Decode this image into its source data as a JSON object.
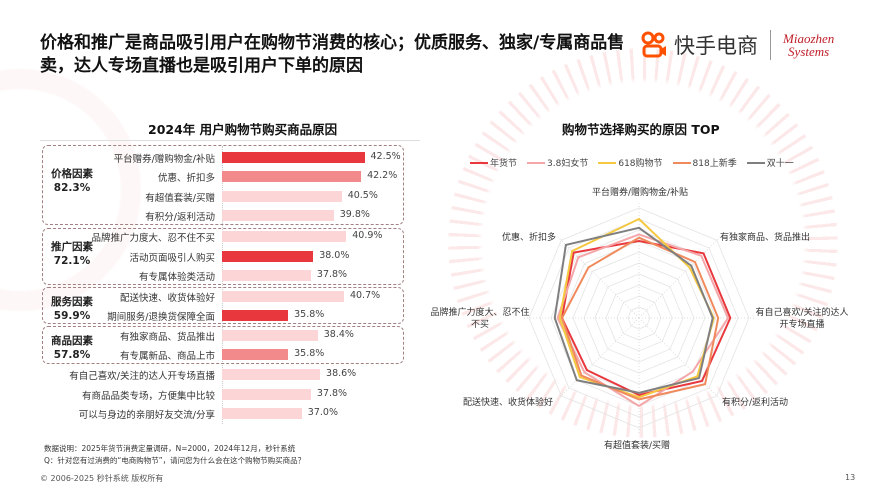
{
  "title": "价格和推广是商品吸引用户在购物节消费的核心；优质服务、独家/专属商品售卖，达人专场直播也是吸引用户下单的原因",
  "logo": {
    "kuaishou": "快手电商",
    "miaozhen_line1": "Miaozhen",
    "miaozhen_line2": "Systems"
  },
  "colors": {
    "dark": "#e8383d",
    "medium": "#f28a8c",
    "light": "#fcd6d6"
  },
  "chart_data": [
    {
      "type": "bar",
      "orientation": "horizontal",
      "title": "2024年 用户购物节购买商品原因",
      "xlim": [
        30,
        45
      ],
      "groups": [
        {
          "name": "价格因素",
          "value": "82.3%"
        },
        {
          "name": "推广因素",
          "value": "72.1%"
        },
        {
          "name": "服务因素",
          "value": "59.9%"
        },
        {
          "name": "商品因素",
          "value": "57.8%"
        }
      ],
      "items": [
        {
          "label": "平台赠券/赠购物金/补贴",
          "value": 42.5,
          "text": "42.5%",
          "shade": "dark",
          "group": 0
        },
        {
          "label": "优惠、折扣多",
          "value": 42.2,
          "text": "42.2%",
          "shade": "medium",
          "group": 0
        },
        {
          "label": "有超值套装/买赠",
          "value": 40.5,
          "text": "40.5%",
          "shade": "light",
          "group": 0
        },
        {
          "label": "有积分/返利活动",
          "value": 39.8,
          "text": "39.8%",
          "shade": "light",
          "group": 0
        },
        {
          "label": "品牌推广力度大、忍不住不买",
          "value": 40.9,
          "text": "40.9%",
          "shade": "light",
          "group": 1
        },
        {
          "label": "活动页面吸引人购买",
          "value": 38.0,
          "text": "38.0%",
          "shade": "dark",
          "group": 1
        },
        {
          "label": "有专属体验类活动",
          "value": 37.8,
          "text": "37.8%",
          "shade": "light",
          "group": 1
        },
        {
          "label": "配送快速、收货体验好",
          "value": 40.7,
          "text": "40.7%",
          "shade": "light",
          "group": 2
        },
        {
          "label": "期间服务/退换货保障全面",
          "value": 35.8,
          "text": "35.8%",
          "shade": "dark",
          "group": 2
        },
        {
          "label": "有独家商品、货品推出",
          "value": 38.4,
          "text": "38.4%",
          "shade": "light",
          "group": 3
        },
        {
          "label": "有专属新品、商品上市",
          "value": 35.8,
          "text": "35.8%",
          "shade": "medium",
          "group": 3
        },
        {
          "label": "有自己喜欢/关注的达人开专场直播",
          "value": 38.6,
          "text": "38.6%",
          "shade": "light"
        },
        {
          "label": "有商品品类专场，方便集中比较",
          "value": 37.8,
          "text": "37.8%",
          "shade": "light"
        },
        {
          "label": "可以与身边的亲朋好友交流/分享",
          "value": 37.0,
          "text": "37.0%",
          "shade": "light"
        }
      ]
    },
    {
      "type": "radar",
      "title": "购物节选择购买的原因 TOP",
      "legend_position": "top",
      "rlim": [
        0,
        50
      ],
      "axes": [
        "平台赠券/赠购物金/补贴",
        "有独家商品、货品推出",
        "有自己喜欢/关注的达人开专场直播",
        "有积分/返利活动",
        "有超值套装/买赠",
        "配送快速、收货体验好",
        "品牌推广力度大、忍不住不买",
        "优惠、折扣多"
      ],
      "series": [
        {
          "name": "年货节",
          "color": "#e8383d",
          "values": [
            35,
            41.5,
            41.5,
            40.5,
            35,
            33.5,
            35,
            42
          ]
        },
        {
          "name": "3.8妇女节",
          "color": "#f4a6a8",
          "values": [
            38,
            40,
            40.5,
            34.5,
            40,
            35,
            37,
            39
          ]
        },
        {
          "name": "618购物节",
          "color": "#f5c842",
          "values": [
            45,
            32.5,
            34,
            37.5,
            36,
            38,
            36,
            43
          ]
        },
        {
          "name": "818上新季",
          "color": "#f08a5d",
          "values": [
            36.5,
            36,
            36,
            42.5,
            37,
            37,
            35,
            32.5
          ]
        },
        {
          "name": "双十一",
          "color": "#7f7f7f",
          "values": [
            41,
            33.6,
            33.5,
            38.6,
            34,
            40,
            38.3,
            47
          ]
        }
      ]
    }
  ],
  "notes": {
    "source": "数据说明：2025年货节消费定量调研，N=2000，2024年12月，秒针系统",
    "question": "Q：针对您有过消费的“电商购物节”，请问您为什么会在这个购物节购买商品？"
  },
  "footer": {
    "copyright": "© 2006-2025 秒针系统 版权所有",
    "page": "13"
  }
}
